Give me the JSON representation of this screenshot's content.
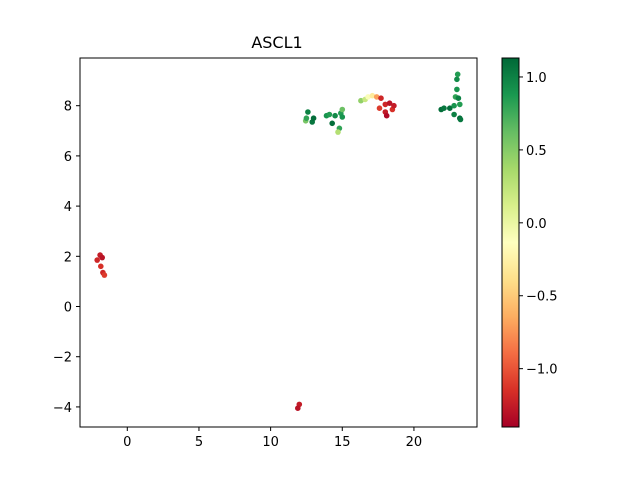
{
  "chart_data": {
    "type": "scatter",
    "title": "ASCL1",
    "xlabel": "",
    "ylabel": "",
    "xlim": [
      -3.3,
      24.4
    ],
    "ylim": [
      -4.8,
      9.9
    ],
    "xticks": [
      0,
      5,
      10,
      15,
      20
    ],
    "yticks": [
      -4,
      -2,
      0,
      2,
      4,
      6,
      8
    ],
    "xtick_labels": [
      "0",
      "5",
      "10",
      "15",
      "20"
    ],
    "ytick_labels": [
      "−4",
      "−2",
      "0",
      "2",
      "4",
      "6",
      "8"
    ],
    "grid": false,
    "colorbar": {
      "colormap": "RdYlGn",
      "vmin": -1.4,
      "vmax": 1.13,
      "ticks": [
        1.0,
        0.5,
        0.0,
        -0.5,
        -1.0
      ],
      "tick_labels": [
        "1.0",
        "0.5",
        "0.0",
        "−0.5",
        "−1.0"
      ]
    },
    "points": [
      {
        "x": -2.1,
        "y": 1.85,
        "v": -1.2
      },
      {
        "x": -1.9,
        "y": 2.05,
        "v": -1.25
      },
      {
        "x": -1.75,
        "y": 1.95,
        "v": -1.3
      },
      {
        "x": -1.85,
        "y": 1.6,
        "v": -1.15
      },
      {
        "x": -1.7,
        "y": 1.35,
        "v": -1.2
      },
      {
        "x": -1.6,
        "y": 1.25,
        "v": -1.1
      },
      {
        "x": 12.0,
        "y": -3.9,
        "v": -1.25
      },
      {
        "x": 11.9,
        "y": -4.05,
        "v": -1.3
      },
      {
        "x": 12.45,
        "y": 7.4,
        "v": 0.55
      },
      {
        "x": 12.5,
        "y": 7.5,
        "v": 0.8
      },
      {
        "x": 12.6,
        "y": 7.75,
        "v": 1.0
      },
      {
        "x": 12.9,
        "y": 7.35,
        "v": 1.05
      },
      {
        "x": 13.0,
        "y": 7.5,
        "v": 1.1
      },
      {
        "x": 13.9,
        "y": 7.6,
        "v": 0.9
      },
      {
        "x": 14.1,
        "y": 7.65,
        "v": 0.85
      },
      {
        "x": 14.3,
        "y": 7.3,
        "v": 1.1
      },
      {
        "x": 14.5,
        "y": 7.6,
        "v": 0.95
      },
      {
        "x": 14.8,
        "y": 7.1,
        "v": 0.8
      },
      {
        "x": 14.7,
        "y": 6.95,
        "v": 0.3
      },
      {
        "x": 14.9,
        "y": 7.7,
        "v": 0.85
      },
      {
        "x": 15.0,
        "y": 7.55,
        "v": 0.9
      },
      {
        "x": 15.0,
        "y": 7.85,
        "v": 0.6
      },
      {
        "x": 16.3,
        "y": 8.2,
        "v": 0.45
      },
      {
        "x": 16.6,
        "y": 8.25,
        "v": 0.2
      },
      {
        "x": 16.8,
        "y": 8.35,
        "v": -0.1
      },
      {
        "x": 17.1,
        "y": 8.4,
        "v": -0.3
      },
      {
        "x": 17.4,
        "y": 8.35,
        "v": -0.7
      },
      {
        "x": 17.7,
        "y": 8.3,
        "v": -1.2
      },
      {
        "x": 17.6,
        "y": 7.9,
        "v": -1.1
      },
      {
        "x": 18.0,
        "y": 7.75,
        "v": -1.25
      },
      {
        "x": 18.1,
        "y": 7.6,
        "v": -1.35
      },
      {
        "x": 18.0,
        "y": 8.05,
        "v": -1.2
      },
      {
        "x": 18.3,
        "y": 8.1,
        "v": -1.3
      },
      {
        "x": 18.5,
        "y": 7.85,
        "v": -1.15
      },
      {
        "x": 18.6,
        "y": 8.0,
        "v": -1.25
      },
      {
        "x": 21.9,
        "y": 7.85,
        "v": 1.1
      },
      {
        "x": 22.1,
        "y": 7.9,
        "v": 1.05
      },
      {
        "x": 22.5,
        "y": 7.9,
        "v": 1.1
      },
      {
        "x": 22.8,
        "y": 7.65,
        "v": 1.0
      },
      {
        "x": 22.8,
        "y": 8.0,
        "v": 0.9
      },
      {
        "x": 22.9,
        "y": 8.35,
        "v": 0.8
      },
      {
        "x": 23.0,
        "y": 8.65,
        "v": 0.9
      },
      {
        "x": 23.0,
        "y": 9.05,
        "v": 0.95
      },
      {
        "x": 23.05,
        "y": 9.25,
        "v": 0.85
      },
      {
        "x": 23.1,
        "y": 8.3,
        "v": 1.0
      },
      {
        "x": 23.2,
        "y": 8.05,
        "v": 0.85
      },
      {
        "x": 23.2,
        "y": 7.5,
        "v": 1.1
      },
      {
        "x": 23.25,
        "y": 7.45,
        "v": 1.05
      }
    ]
  }
}
